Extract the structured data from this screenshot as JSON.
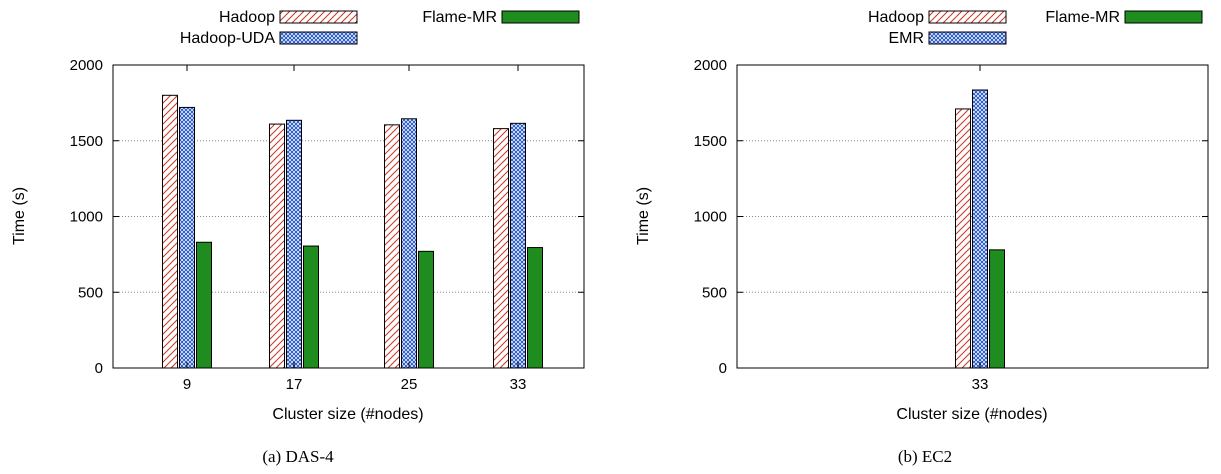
{
  "chart_data": [
    {
      "type": "bar",
      "caption": "(a) DAS-4",
      "xlabel": "Cluster size (#nodes)",
      "ylabel": "Time (s)",
      "ylim": [
        0,
        2000
      ],
      "yticks": [
        0,
        500,
        1000,
        1500,
        2000
      ],
      "grid": "horizontal-dotted",
      "legend_position": "top",
      "categories": [
        "9",
        "17",
        "25",
        "33"
      ],
      "series": [
        {
          "name": "Hadoop",
          "pattern": "hatch-red",
          "values": [
            1800,
            1610,
            1605,
            1580
          ]
        },
        {
          "name": "Hadoop-UDA",
          "pattern": "crosshatch-blue",
          "values": [
            1720,
            1635,
            1645,
            1615
          ]
        },
        {
          "name": "Flame-MR",
          "pattern": "solid-green",
          "values": [
            830,
            805,
            770,
            795
          ]
        }
      ]
    },
    {
      "type": "bar",
      "caption": "(b) EC2",
      "xlabel": "Cluster size (#nodes)",
      "ylabel": "Time (s)",
      "ylim": [
        0,
        2000
      ],
      "yticks": [
        0,
        500,
        1000,
        1500,
        2000
      ],
      "grid": "horizontal-dotted",
      "legend_position": "top",
      "categories": [
        "33"
      ],
      "series": [
        {
          "name": "Hadoop",
          "pattern": "hatch-red",
          "values": [
            1710
          ]
        },
        {
          "name": "EMR",
          "pattern": "crosshatch-blue",
          "values": [
            1835
          ]
        },
        {
          "name": "Flame-MR",
          "pattern": "solid-green",
          "values": [
            780
          ]
        }
      ]
    }
  ],
  "colors": {
    "hatch_red": "#cc3322",
    "crosshatch_blue": "#2255cc",
    "solid_green": "#1e8c1e",
    "grid": "#888888"
  }
}
